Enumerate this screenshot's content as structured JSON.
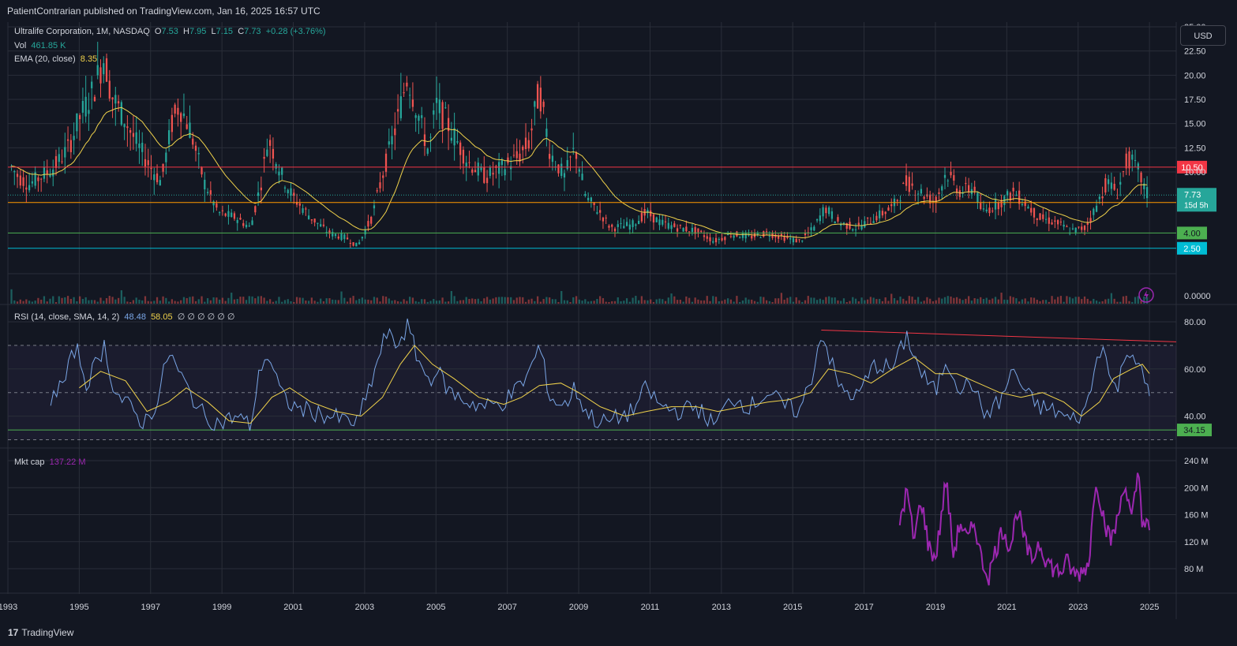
{
  "header": {
    "publisher_line": "PatientContrarian published on TradingView.com, Jan 16, 2025 16:57 UTC"
  },
  "legend": {
    "symbol": "Ultralife Corporation, 1M, NASDAQ",
    "o_label": "O",
    "o_val": "7.53",
    "h_label": "H",
    "h_val": "7.95",
    "l_label": "L",
    "l_val": "7.15",
    "c_label": "C",
    "c_val": "7.73",
    "change": "+0.28 (+3.76%)",
    "vol_label": "Vol",
    "vol_val": "461.85 K",
    "ema_label": "EMA (20, close)",
    "ema_val": "8.35",
    "rsi_label": "RSI (14, close, SMA, 14, 2)",
    "rsi_val": "48.48",
    "rsi_ma_val": "58.05",
    "rsi_extra": "∅ ∅ ∅ ∅ ∅ ∅",
    "mktcap_label": "Mkt cap",
    "mktcap_val": "137.22 M"
  },
  "currency_button": "USD",
  "footer": {
    "logo_mark": "17",
    "brand": "TradingView"
  },
  "colors": {
    "background": "#131722",
    "grid": "#2a2e39",
    "up": "#26a69a",
    "down": "#ef5350",
    "ema": "#f0d24b",
    "rsi": "#7aa6e6",
    "rsi_ma": "#f0d24b",
    "mktcap": "#9c27b0",
    "line_1050": "#f23645",
    "line_700": "#ff9800",
    "line_400": "#4caf50",
    "line_250": "#00bcd4"
  },
  "chart_data": [
    {
      "type": "candlestick",
      "name": "Ultralife Corporation, 1M, NASDAQ",
      "interval": "1M",
      "x_range": [
        1993.0,
        2025.75
      ],
      "ylim": [
        0,
        25.5
      ],
      "y_ticks": [
        "25.00",
        "22.50",
        "20.00",
        "17.50",
        "15.00",
        "12.50",
        "10.00",
        "0.0000"
      ],
      "y_tick_values": [
        25,
        22.5,
        20,
        17.5,
        15,
        12.5,
        10,
        0
      ],
      "x_ticks": [
        "1993",
        "1995",
        "1997",
        "1999",
        "2001",
        "2003",
        "2005",
        "2007",
        "2009",
        "2011",
        "2013",
        "2015",
        "2017",
        "2019",
        "2021",
        "2023",
        "2025"
      ],
      "x_tick_years": [
        1993,
        1995,
        1997,
        1999,
        2001,
        2003,
        2005,
        2007,
        2009,
        2011,
        2013,
        2015,
        2017,
        2019,
        2021,
        2023,
        2025
      ],
      "price_path": [
        [
          1993.1,
          10.5
        ],
        [
          1993.3,
          9.5
        ],
        [
          1993.6,
          8.8
        ],
        [
          1993.9,
          9.5
        ],
        [
          1994.3,
          10.5
        ],
        [
          1994.7,
          12.5
        ],
        [
          1995.0,
          15.5
        ],
        [
          1995.4,
          18.5
        ],
        [
          1995.7,
          22.0
        ],
        [
          1995.9,
          18.0
        ],
        [
          1996.2,
          16.0
        ],
        [
          1996.6,
          13.0
        ],
        [
          1997.0,
          10.5
        ],
        [
          1997.3,
          9.0
        ],
        [
          1997.6,
          15.0
        ],
        [
          1997.8,
          17.0
        ],
        [
          1998.1,
          14.5
        ],
        [
          1998.5,
          9.0
        ],
        [
          1998.9,
          6.0
        ],
        [
          1999.4,
          5.5
        ],
        [
          1999.8,
          4.5
        ],
        [
          2000.1,
          9.0
        ],
        [
          2000.3,
          13.5
        ],
        [
          2000.7,
          9.5
        ],
        [
          2001.0,
          7.5
        ],
        [
          2001.5,
          5.5
        ],
        [
          2002.0,
          4.0
        ],
        [
          2002.5,
          3.5
        ],
        [
          2002.8,
          2.7
        ],
        [
          2003.2,
          5.5
        ],
        [
          2003.6,
          11.0
        ],
        [
          2003.9,
          15.0
        ],
        [
          2004.2,
          20.0
        ],
        [
          2004.5,
          16.0
        ],
        [
          2004.8,
          12.0
        ],
        [
          2005.0,
          17.0
        ],
        [
          2005.4,
          14.5
        ],
        [
          2005.9,
          11.0
        ],
        [
          2006.4,
          9.5
        ],
        [
          2006.9,
          10.5
        ],
        [
          2007.3,
          11.5
        ],
        [
          2007.6,
          13.0
        ],
        [
          2007.9,
          18.5
        ],
        [
          2008.2,
          12.0
        ],
        [
          2008.6,
          9.5
        ],
        [
          2008.9,
          12.5
        ],
        [
          2009.2,
          7.5
        ],
        [
          2009.6,
          6.0
        ],
        [
          2009.9,
          4.5
        ],
        [
          2010.5,
          4.8
        ],
        [
          2010.9,
          6.0
        ],
        [
          2011.3,
          5.0
        ],
        [
          2011.8,
          4.5
        ],
        [
          2012.3,
          4.2
        ],
        [
          2012.8,
          3.2
        ],
        [
          2013.3,
          3.9
        ],
        [
          2013.8,
          3.6
        ],
        [
          2014.3,
          4.0
        ],
        [
          2014.8,
          3.5
        ],
        [
          2015.2,
          3.2
        ],
        [
          2015.6,
          4.5
        ],
        [
          2015.9,
          6.5
        ],
        [
          2016.3,
          5.0
        ],
        [
          2016.8,
          4.5
        ],
        [
          2017.3,
          5.5
        ],
        [
          2017.8,
          6.5
        ],
        [
          2018.2,
          9.0
        ],
        [
          2018.6,
          8.0
        ],
        [
          2019.0,
          7.0
        ],
        [
          2019.3,
          10.0
        ],
        [
          2019.7,
          8.0
        ],
        [
          2020.1,
          8.5
        ],
        [
          2020.3,
          6.0
        ],
        [
          2020.8,
          7.0
        ],
        [
          2021.2,
          8.0
        ],
        [
          2021.5,
          7.0
        ],
        [
          2021.9,
          5.5
        ],
        [
          2022.4,
          5.0
        ],
        [
          2022.8,
          4.2
        ],
        [
          2023.2,
          4.5
        ],
        [
          2023.5,
          6.5
        ],
        [
          2023.8,
          9.0
        ],
        [
          2024.1,
          8.0
        ],
        [
          2024.4,
          11.5
        ],
        [
          2024.7,
          10.0
        ],
        [
          2024.9,
          8.0
        ],
        [
          2025.0,
          7.73
        ]
      ],
      "last_price": 7.73,
      "countdown": "15d 5h",
      "horizontal_lines": [
        {
          "label": "10.50",
          "value": 10.5,
          "color": "#f23645"
        },
        {
          "label": "7.00",
          "value": 7.0,
          "color": "#ff9800"
        },
        {
          "label": "4.00",
          "value": 4.0,
          "color": "#4caf50"
        },
        {
          "label": "2.50",
          "value": 2.5,
          "color": "#00bcd4"
        }
      ],
      "last_price_label": "7.73"
    },
    {
      "type": "line",
      "name": "RSI (14, close, SMA, 14, 2)",
      "ylim": [
        28,
        82
      ],
      "y_ticks": [
        "80.00",
        "60.00",
        "40.00"
      ],
      "y_tick_values": [
        80,
        60,
        40
      ],
      "bands": [
        70,
        50,
        30
      ],
      "support_level": {
        "label": "34.15",
        "value": 34.15,
        "color": "#4caf50"
      },
      "trendline": {
        "from": [
          2015.8,
          76.5
        ],
        "to": [
          2025.75,
          71.5
        ],
        "color": "#f23645"
      },
      "rsi_path": [
        [
          1994.2,
          48
        ],
        [
          1994.6,
          55
        ],
        [
          1994.9,
          70
        ],
        [
          1995.2,
          54
        ],
        [
          1995.5,
          63
        ],
        [
          1995.7,
          70
        ],
        [
          1996.0,
          50
        ],
        [
          1996.4,
          44
        ],
        [
          1996.8,
          37
        ],
        [
          1997.2,
          46
        ],
        [
          1997.5,
          68
        ],
        [
          1997.8,
          58
        ],
        [
          1998.1,
          50
        ],
        [
          1998.5,
          40
        ],
        [
          1998.9,
          37
        ],
        [
          1999.4,
          40
        ],
        [
          1999.8,
          36
        ],
        [
          2000.1,
          62
        ],
        [
          2000.3,
          66
        ],
        [
          2000.7,
          48
        ],
        [
          2001.0,
          44
        ],
        [
          2001.5,
          42
        ],
        [
          2002.0,
          40
        ],
        [
          2002.5,
          38
        ],
        [
          2002.8,
          37
        ],
        [
          2003.2,
          55
        ],
        [
          2003.6,
          75
        ],
        [
          2003.9,
          70
        ],
        [
          2004.2,
          78
        ],
        [
          2004.5,
          64
        ],
        [
          2004.8,
          55
        ],
        [
          2005.0,
          60
        ],
        [
          2005.4,
          50
        ],
        [
          2005.9,
          46
        ],
        [
          2006.4,
          44
        ],
        [
          2006.9,
          46
        ],
        [
          2007.3,
          52
        ],
        [
          2007.6,
          58
        ],
        [
          2007.9,
          70
        ],
        [
          2008.2,
          48
        ],
        [
          2008.6,
          44
        ],
        [
          2008.9,
          52
        ],
        [
          2009.2,
          42
        ],
        [
          2009.6,
          37
        ],
        [
          2009.9,
          38
        ],
        [
          2010.5,
          42
        ],
        [
          2010.9,
          52
        ],
        [
          2011.3,
          44
        ],
        [
          2011.8,
          42
        ],
        [
          2012.3,
          44
        ],
        [
          2012.8,
          36
        ],
        [
          2013.3,
          48
        ],
        [
          2013.8,
          44
        ],
        [
          2014.3,
          50
        ],
        [
          2014.8,
          44
        ],
        [
          2015.2,
          42
        ],
        [
          2015.6,
          60
        ],
        [
          2015.8,
          76.5
        ],
        [
          2016.3,
          52
        ],
        [
          2016.8,
          48
        ],
        [
          2017.3,
          62
        ],
        [
          2017.8,
          60
        ],
        [
          2018.2,
          74
        ],
        [
          2018.6,
          58
        ],
        [
          2019.0,
          50
        ],
        [
          2019.3,
          64
        ],
        [
          2019.7,
          52
        ],
        [
          2020.1,
          54
        ],
        [
          2020.3,
          40
        ],
        [
          2020.8,
          46
        ],
        [
          2021.2,
          60
        ],
        [
          2021.5,
          50
        ],
        [
          2021.9,
          44
        ],
        [
          2022.4,
          42
        ],
        [
          2022.8,
          38
        ],
        [
          2023.2,
          42
        ],
        [
          2023.5,
          62
        ],
        [
          2023.7,
          73
        ],
        [
          2023.9,
          54
        ],
        [
          2024.1,
          52
        ],
        [
          2024.4,
          70
        ],
        [
          2024.7,
          62
        ],
        [
          2024.9,
          52
        ],
        [
          2025.0,
          48.48
        ]
      ],
      "rsi_ma_path": [
        [
          1995.0,
          52
        ],
        [
          1995.6,
          59
        ],
        [
          1996.3,
          55
        ],
        [
          1996.9,
          42
        ],
        [
          1997.5,
          46
        ],
        [
          1998.0,
          52
        ],
        [
          1998.6,
          46
        ],
        [
          1999.2,
          38
        ],
        [
          1999.8,
          37
        ],
        [
          2000.4,
          48
        ],
        [
          2000.9,
          52
        ],
        [
          2001.5,
          46
        ],
        [
          2002.2,
          42
        ],
        [
          2002.9,
          40
        ],
        [
          2003.5,
          48
        ],
        [
          2004.0,
          62
        ],
        [
          2004.4,
          70
        ],
        [
          2004.9,
          62
        ],
        [
          2005.5,
          56
        ],
        [
          2006.2,
          48
        ],
        [
          2006.9,
          45
        ],
        [
          2007.4,
          48
        ],
        [
          2007.9,
          53
        ],
        [
          2008.5,
          54
        ],
        [
          2009.0,
          50
        ],
        [
          2009.6,
          44
        ],
        [
          2010.3,
          40
        ],
        [
          2010.9,
          42
        ],
        [
          2011.6,
          44
        ],
        [
          2012.3,
          44
        ],
        [
          2012.9,
          42
        ],
        [
          2013.6,
          44
        ],
        [
          2014.3,
          46
        ],
        [
          2014.9,
          47
        ],
        [
          2015.5,
          50
        ],
        [
          2016.0,
          60
        ],
        [
          2016.6,
          58
        ],
        [
          2017.2,
          54
        ],
        [
          2017.8,
          60
        ],
        [
          2018.4,
          65
        ],
        [
          2019.0,
          58
        ],
        [
          2019.6,
          58
        ],
        [
          2020.2,
          54
        ],
        [
          2020.8,
          50
        ],
        [
          2021.4,
          48
        ],
        [
          2022.0,
          50
        ],
        [
          2022.6,
          46
        ],
        [
          2023.1,
          40
        ],
        [
          2023.6,
          46
        ],
        [
          2024.0,
          56
        ],
        [
          2024.5,
          60
        ],
        [
          2024.8,
          62
        ],
        [
          2025.0,
          58.05
        ]
      ]
    },
    {
      "type": "line",
      "name": "Mkt cap",
      "ylim": [
        40,
        245
      ],
      "y_ticks": [
        "240 M",
        "200 M",
        "160 M",
        "120 M",
        "80 M"
      ],
      "y_tick_values": [
        240,
        200,
        160,
        120,
        80
      ],
      "mktcap_path": [
        [
          2018.0,
          150
        ],
        [
          2018.2,
          195
        ],
        [
          2018.4,
          120
        ],
        [
          2018.6,
          185
        ],
        [
          2018.8,
          115
        ],
        [
          2019.0,
          95
        ],
        [
          2019.1,
          130
        ],
        [
          2019.3,
          215
        ],
        [
          2019.5,
          100
        ],
        [
          2019.7,
          150
        ],
        [
          2019.9,
          120
        ],
        [
          2020.1,
          150
        ],
        [
          2020.3,
          90
        ],
        [
          2020.5,
          70
        ],
        [
          2020.7,
          110
        ],
        [
          2020.9,
          140
        ],
        [
          2021.1,
          110
        ],
        [
          2021.3,
          170
        ],
        [
          2021.5,
          120
        ],
        [
          2021.7,
          90
        ],
        [
          2021.9,
          120
        ],
        [
          2022.1,
          95
        ],
        [
          2022.3,
          80
        ],
        [
          2022.5,
          75
        ],
        [
          2022.7,
          90
        ],
        [
          2022.9,
          70
        ],
        [
          2023.1,
          75
        ],
        [
          2023.3,
          90
        ],
        [
          2023.5,
          215
        ],
        [
          2023.7,
          160
        ],
        [
          2023.9,
          120
        ],
        [
          2024.1,
          150
        ],
        [
          2024.3,
          210
        ],
        [
          2024.5,
          150
        ],
        [
          2024.7,
          225
        ],
        [
          2024.8,
          150
        ],
        [
          2025.0,
          137
        ]
      ]
    }
  ]
}
